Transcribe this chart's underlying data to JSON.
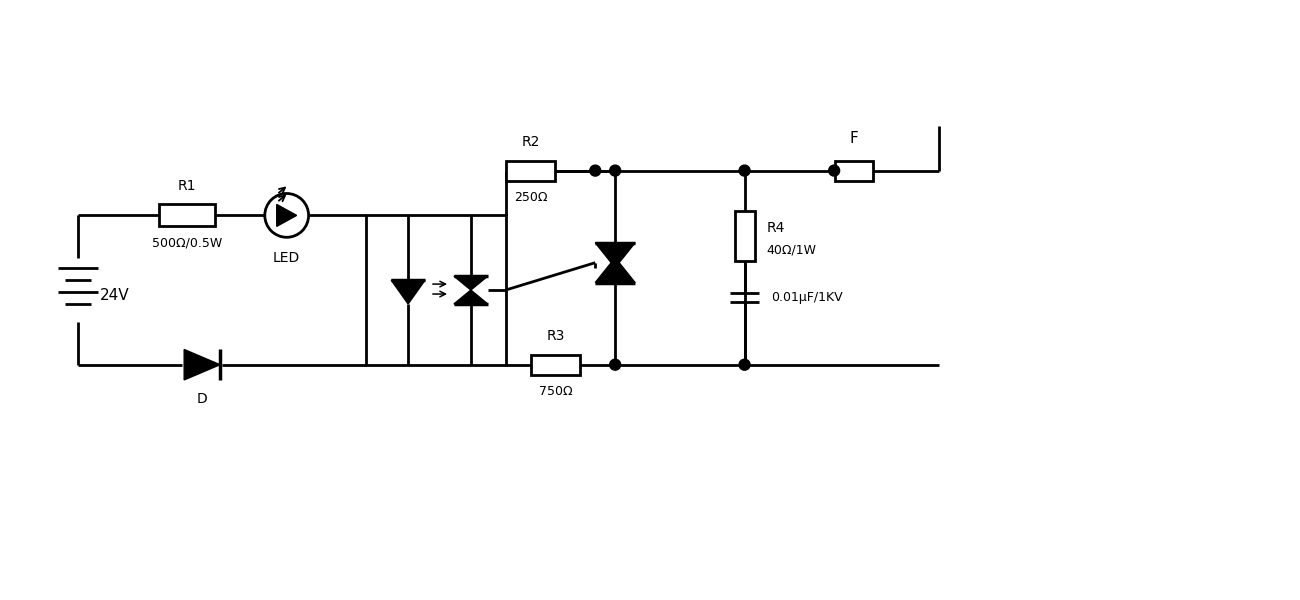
{
  "bg_color": "#ffffff",
  "line_color": "#000000",
  "line_width": 2.0,
  "labels": {
    "battery": "24V",
    "R1": "R1",
    "R1_val": "500Ω/0.5W",
    "LED": "LED",
    "D": "D",
    "R2": "R2",
    "R2_val": "250Ω",
    "R3": "R3",
    "R3_val": "750Ω",
    "R4": "R4",
    "R4_val": "40Ω/1W",
    "C_val": "0.01μF/1KV",
    "F": "F"
  }
}
